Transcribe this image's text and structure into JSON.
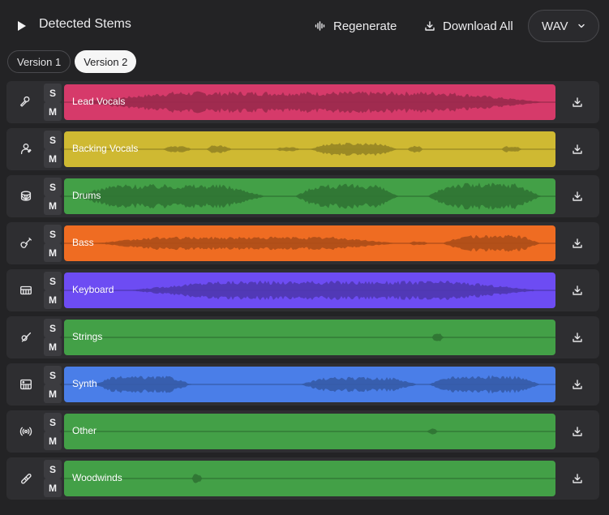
{
  "header": {
    "title": "Detected Stems",
    "regenerate_label": "Regenerate",
    "download_all_label": "Download All",
    "format": "WAV"
  },
  "tabs": [
    {
      "label": "Version 1",
      "active": false
    },
    {
      "label": "Version 2",
      "active": true
    }
  ],
  "colors": {
    "lead_vocals": "#d63a6a",
    "backing_vocals": "#cfb932",
    "drums": "#43a047",
    "bass": "#ef6c22",
    "keyboard": "#6d4cf3",
    "strings": "#43a047",
    "synth": "#4a7ee8",
    "other": "#43a047",
    "woodwinds": "#43a047"
  },
  "tracks": [
    {
      "name": "Lead Vocals",
      "icon": "microphone-icon",
      "solo": "S",
      "mute": "M",
      "color": "#d63a6a"
    },
    {
      "name": "Backing Vocals",
      "icon": "singer-icon",
      "solo": "S",
      "mute": "M",
      "color": "#cfb932"
    },
    {
      "name": "Drums",
      "icon": "drum-icon",
      "solo": "S",
      "mute": "M",
      "color": "#43a047"
    },
    {
      "name": "Bass",
      "icon": "bass-guitar-icon",
      "solo": "S",
      "mute": "M",
      "color": "#ef6c22"
    },
    {
      "name": "Keyboard",
      "icon": "keyboard-icon",
      "solo": "S",
      "mute": "M",
      "color": "#6d4cf3"
    },
    {
      "name": "Strings",
      "icon": "violin-icon",
      "solo": "S",
      "mute": "M",
      "color": "#43a047"
    },
    {
      "name": "Synth",
      "icon": "synth-icon",
      "solo": "S",
      "mute": "M",
      "color": "#4a7ee8"
    },
    {
      "name": "Other",
      "icon": "broadcast-icon",
      "solo": "S",
      "mute": "M",
      "color": "#43a047"
    },
    {
      "name": "Woodwinds",
      "icon": "clarinet-icon",
      "solo": "S",
      "mute": "M",
      "color": "#43a047"
    }
  ]
}
